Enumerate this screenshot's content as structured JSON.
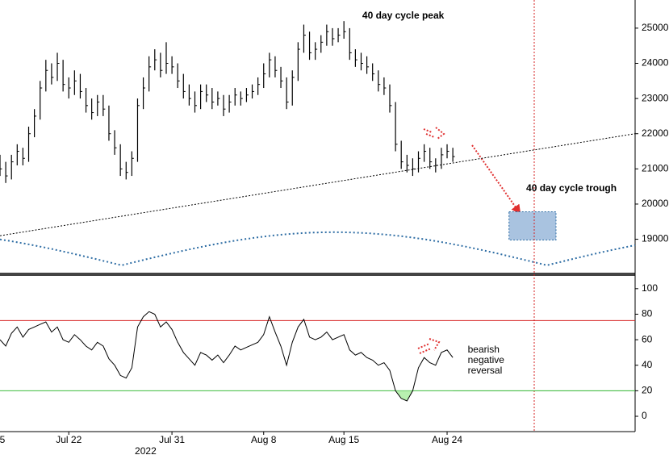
{
  "chart_data": [
    {
      "type": "hlc",
      "x": [
        1,
        1.5,
        2,
        2.5,
        3,
        3.5,
        4,
        4.5,
        5,
        5.5,
        6,
        6.5,
        7,
        7.5,
        8,
        8.5,
        9,
        9.5,
        10,
        10.5,
        11,
        11.5,
        12,
        12.5,
        13,
        13.5,
        14,
        14.5,
        15,
        15.5,
        16,
        16.5,
        17,
        17.5,
        18,
        18.5,
        19,
        19.5,
        20,
        20.5,
        21,
        21.5,
        22,
        22.5,
        23,
        23.5,
        24,
        24.5,
        25,
        25.5,
        26,
        26.5,
        27,
        27.5,
        28,
        28.5,
        29,
        29.5,
        30,
        30.5,
        31,
        31.5,
        32,
        32.5,
        33,
        33.5,
        34,
        34.5,
        35,
        35.5,
        36,
        36.5,
        37,
        37.5,
        38,
        38.5,
        39,
        39.5,
        40,
        40.5
      ],
      "high": [
        21400,
        21200,
        21400,
        21700,
        21600,
        22200,
        22700,
        23500,
        24100,
        24000,
        24300,
        24100,
        23600,
        23800,
        23700,
        23300,
        23000,
        23100,
        23100,
        22800,
        22100,
        21700,
        21200,
        21500,
        23000,
        23600,
        24200,
        24400,
        24300,
        24600,
        24200,
        24000,
        23700,
        23400,
        23200,
        23400,
        23400,
        23300,
        23200,
        23100,
        23100,
        23300,
        23200,
        23300,
        23400,
        23600,
        24000,
        24300,
        24200,
        23900,
        23600,
        23800,
        24600,
        25100,
        24900,
        24600,
        24800,
        25100,
        25000,
        25000,
        25200,
        25000,
        24400,
        24300,
        24200,
        24000,
        23800,
        23600,
        23400,
        22900,
        21800,
        21400,
        21300,
        21500,
        21700,
        21600,
        21300,
        21600,
        21700,
        21600
      ],
      "low": [
        20800,
        20600,
        20700,
        21100,
        21100,
        21200,
        21900,
        22400,
        23200,
        23400,
        23500,
        23200,
        23000,
        23100,
        23000,
        22600,
        22400,
        22500,
        22500,
        21800,
        21400,
        20800,
        20700,
        20800,
        21200,
        22700,
        23200,
        23800,
        23600,
        23700,
        23700,
        23300,
        23000,
        22800,
        22600,
        22700,
        22900,
        22700,
        22800,
        22500,
        22600,
        22800,
        22800,
        22900,
        23000,
        23100,
        23300,
        23600,
        23600,
        23300,
        22700,
        22800,
        23500,
        24300,
        24100,
        24100,
        24300,
        24500,
        24500,
        24600,
        24700,
        24100,
        23900,
        23800,
        23700,
        23500,
        23200,
        23100,
        22600,
        21500,
        21000,
        20900,
        20800,
        20900,
        21200,
        21000,
        20900,
        21000,
        21300,
        21200
      ],
      "close": [
        21000,
        20800,
        21200,
        21500,
        21300,
        22000,
        22500,
        23300,
        23800,
        23600,
        24000,
        23400,
        23300,
        23500,
        23200,
        22800,
        22600,
        22900,
        22700,
        22000,
        21600,
        21000,
        20900,
        21300,
        22800,
        23300,
        23900,
        24100,
        23800,
        24000,
        23900,
        23500,
        23200,
        23000,
        22800,
        23200,
        23100,
        22900,
        23000,
        22700,
        22900,
        23100,
        23000,
        23100,
        23200,
        23400,
        23700,
        24100,
        23800,
        23500,
        22900,
        23600,
        24400,
        24800,
        24300,
        24400,
        24600,
        24900,
        24700,
        24800,
        24900,
        24300,
        24100,
        24000,
        23900,
        23700,
        23400,
        23300,
        22800,
        21700,
        21200,
        21100,
        21000,
        21300,
        21500,
        21200,
        21100,
        21400,
        21500,
        21350
      ],
      "color": "#000000",
      "xlim": [
        1,
        56.4
      ],
      "ylim": [
        18050,
        25800
      ],
      "yticks": [
        19000,
        20000,
        21000,
        22000,
        23000,
        24000,
        25000
      ],
      "annotations": [
        {
          "text": "40 day cycle peak",
          "x": 32.6,
          "y": 25340,
          "color": "#2e6da4"
        },
        {
          "text": "40 day cycle trough",
          "x": 46.9,
          "y": 20440,
          "color": "#2e6da4"
        }
      ],
      "trendline": {
        "x": [
          1,
          56.4
        ],
        "y": [
          19100,
          22000
        ],
        "color": "#000000"
      },
      "cycle": {
        "troughs": [
          11.6,
          48.7
        ],
        "trough_level": 18260,
        "peak_level": 19200,
        "color": "#2e6da4"
      },
      "target_zone": {
        "x": [
          45.4,
          49.5
        ],
        "y": [
          18980,
          19780
        ],
        "color": "#a9c3e0"
      },
      "marker_x": 47.6
    },
    {
      "type": "line",
      "x": [
        1,
        1.5,
        2,
        2.5,
        3,
        3.5,
        4,
        4.5,
        5,
        5.5,
        6,
        6.5,
        7,
        7.5,
        8,
        8.5,
        9,
        9.5,
        10,
        10.5,
        11,
        11.5,
        12,
        12.5,
        13,
        13.5,
        14,
        14.5,
        15,
        15.5,
        16,
        16.5,
        17,
        17.5,
        18,
        18.5,
        19,
        19.5,
        20,
        20.5,
        21,
        21.5,
        22,
        22.5,
        23,
        23.5,
        24,
        24.5,
        25,
        25.5,
        26,
        26.5,
        27,
        27.5,
        28,
        28.5,
        29,
        29.5,
        30,
        30.5,
        31,
        31.5,
        32,
        32.5,
        33,
        33.5,
        34,
        34.5,
        35,
        35.5,
        36,
        36.5,
        37,
        37.5,
        38,
        38.5,
        39,
        39.5,
        40,
        40.5
      ],
      "values": [
        60,
        55,
        65,
        70,
        62,
        68,
        70,
        72,
        74,
        66,
        70,
        60,
        58,
        64,
        60,
        55,
        52,
        58,
        55,
        45,
        40,
        32,
        30,
        38,
        70,
        78,
        82,
        80,
        70,
        74,
        68,
        58,
        50,
        45,
        40,
        50,
        48,
        44,
        48,
        42,
        48,
        55,
        52,
        54,
        56,
        58,
        64,
        78,
        66,
        55,
        40,
        58,
        70,
        76,
        62,
        60,
        62,
        66,
        60,
        62,
        64,
        52,
        48,
        50,
        46,
        44,
        40,
        42,
        36,
        20,
        14,
        12,
        20,
        38,
        46,
        42,
        40,
        50,
        52,
        46
      ],
      "color": "#000000",
      "xlim": [
        1,
        56.4
      ],
      "ylim": [
        -12,
        110
      ],
      "yticks": [
        0,
        20,
        40,
        60,
        80,
        100
      ],
      "xticks": [
        {
          "value": 0,
          "label": "5"
        },
        {
          "value": 7,
          "label": "Jul 22"
        },
        {
          "value": 16,
          "label": "Jul 31"
        },
        {
          "value": 24,
          "label": "Aug 8"
        },
        {
          "value": 31,
          "label": "Aug 15"
        },
        {
          "value": 40,
          "label": "Aug 24"
        }
      ],
      "year_label": {
        "text": "2022",
        "x": 13.7
      },
      "levels": [
        {
          "value": 75,
          "color": "#d62020"
        },
        {
          "value": 20,
          "color": "#2fb52f"
        }
      ],
      "fill_below_color": "#b8f0b0",
      "annotation": {
        "lines": [
          "bearish",
          "negative",
          "reversal"
        ],
        "x": 41.8,
        "y": 52,
        "color": "#d62020"
      }
    }
  ]
}
